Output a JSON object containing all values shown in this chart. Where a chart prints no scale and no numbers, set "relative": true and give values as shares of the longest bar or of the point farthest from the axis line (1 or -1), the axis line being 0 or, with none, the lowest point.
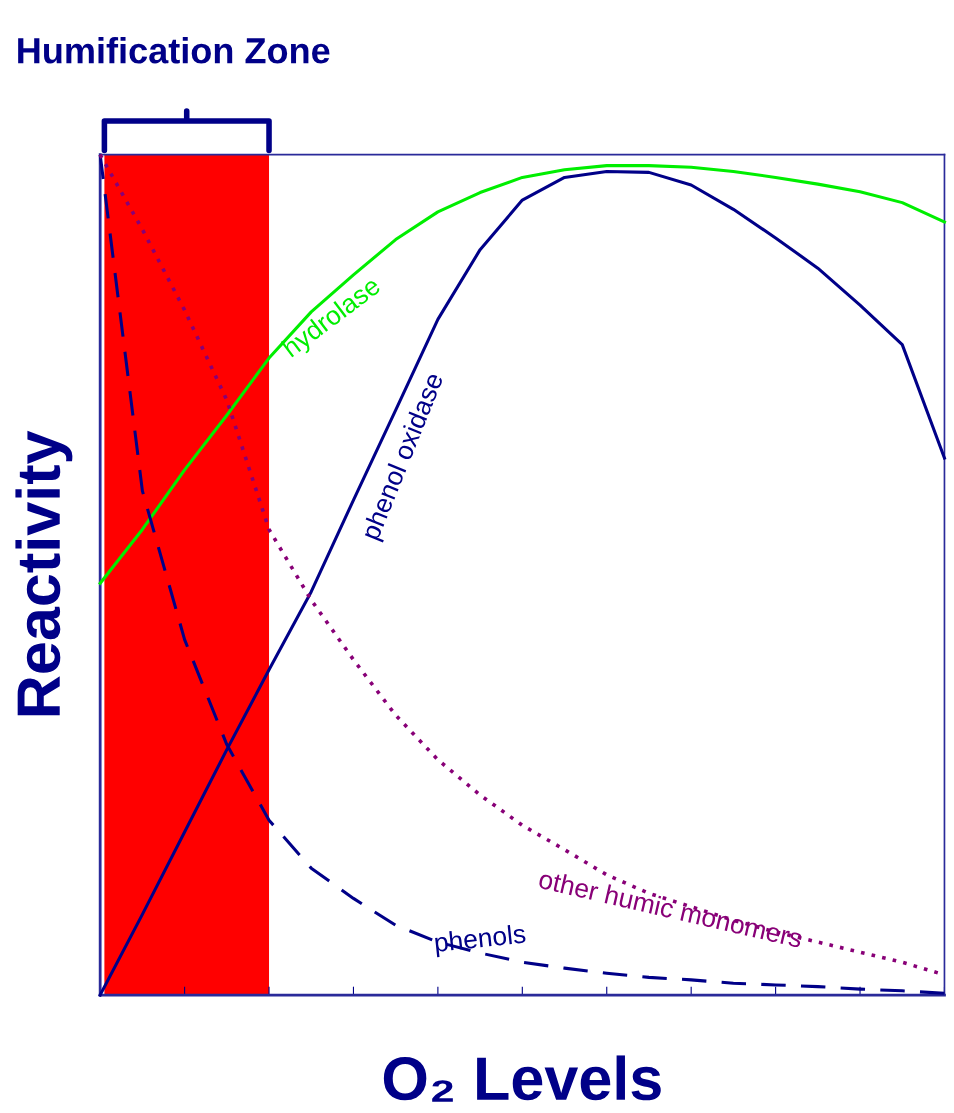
{
  "chart_data": {
    "type": "line",
    "relative": true,
    "xlabel": "O₂ Levels",
    "ylabel": "Reactivity",
    "categories": [
      null,
      null,
      null,
      null,
      null,
      null,
      null,
      null,
      null,
      null,
      null,
      null,
      null,
      null,
      null,
      null,
      null,
      null,
      null,
      null,
      null
    ],
    "series": [
      {
        "name": "hydrolase",
        "color": "#00ee00",
        "line_style": "solid",
        "values": [
          0.49,
          0.554,
          0.625,
          0.69,
          0.758,
          0.813,
          0.857,
          0.899,
          0.932,
          0.955,
          0.973,
          0.982,
          0.987,
          0.987,
          0.985,
          0.98,
          0.973,
          0.965,
          0.956,
          0.943,
          0.92
        ]
      },
      {
        "name": "phenol oxidase",
        "color": "#000088",
        "line_style": "solid",
        "values": [
          0,
          0.096,
          0.194,
          0.292,
          0.387,
          0.48,
          0.589,
          0.696,
          0.804,
          0.887,
          0.946,
          0.973,
          0.98,
          0.979,
          0.964,
          0.935,
          0.901,
          0.865,
          0.821,
          0.774,
          0.639
        ]
      },
      {
        "name": "phenols",
        "color": "#000088",
        "line_style": "dashed",
        "values": [
          1,
          0.6,
          0.423,
          0.298,
          0.208,
          0.151,
          0.115,
          0.083,
          0.063,
          0.05,
          0.039,
          0.032,
          0.026,
          0.021,
          0.018,
          0.014,
          0.012,
          0.01,
          0.007,
          0.005,
          0.002
        ]
      },
      {
        "name": "other humic monomers",
        "color": "#880077",
        "line_style": "dotted",
        "values": [
          1,
          0.911,
          0.815,
          0.708,
          0.554,
          0.47,
          0.399,
          0.333,
          0.28,
          0.238,
          0.202,
          0.173,
          0.143,
          0.121,
          0.105,
          0.089,
          0.075,
          0.063,
          0.051,
          0.039,
          0.024
        ]
      }
    ],
    "annotations": [
      "Humification Zone"
    ],
    "grid": false,
    "legend": false
  }
}
